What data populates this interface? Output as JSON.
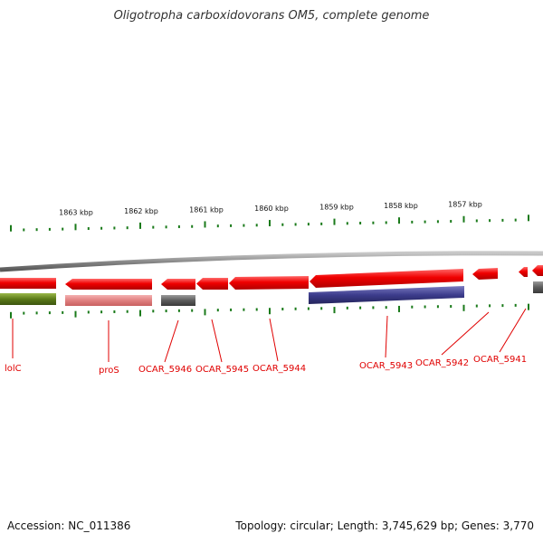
{
  "title": "Oligotropha carboxidovorans OM5, complete genome",
  "footer": {
    "accession": "Accession: NC_011386",
    "summary": "Topology: circular; Length: 3,745,629 bp; Genes: 3,770"
  },
  "scale": {
    "tick_color": "#1a7a1a",
    "labels": [
      {
        "text": "1863 kbp"
      },
      {
        "text": "1862 kbp"
      },
      {
        "text": "1861 kbp"
      },
      {
        "text": "1860 kbp"
      },
      {
        "text": "1859 kbp"
      },
      {
        "text": "1858 kbp"
      },
      {
        "text": "1857 kbp"
      }
    ]
  },
  "colors": {
    "backbone": "#8a8a8a",
    "cds": "#e80000",
    "label": "#e00000",
    "olive": "#5a7a18",
    "pink": "#e08080",
    "gray_feature": "#5c5c5c",
    "blue_feature": "#3c3c8c"
  },
  "genes": [
    {
      "name": "lolC"
    },
    {
      "name": "proS"
    },
    {
      "name": "OCAR_5946"
    },
    {
      "name": "OCAR_5945"
    },
    {
      "name": "OCAR_5944"
    },
    {
      "name": "OCAR_5943"
    },
    {
      "name": "OCAR_5942"
    },
    {
      "name": "OCAR_5941"
    }
  ]
}
